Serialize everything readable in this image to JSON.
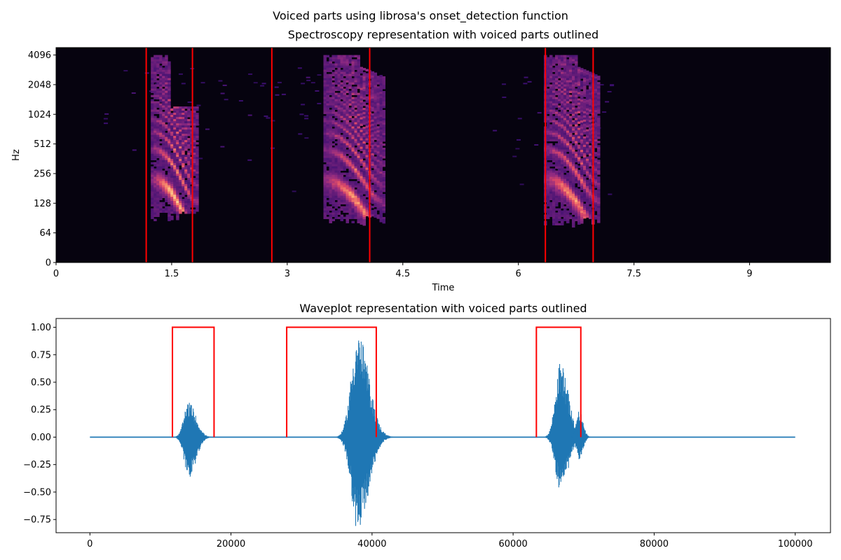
{
  "figure": {
    "suptitle": "Voiced parts using librosa's onset_detection function"
  },
  "chart_data": [
    {
      "type": "heatmap",
      "title": "Spectroscopy representation with voiced parts outlined",
      "xlabel": "Time",
      "ylabel": "Hz",
      "xlim": [
        0,
        10.05
      ],
      "yscale": "symlog",
      "x_ticks": [
        0,
        1.5,
        3,
        4.5,
        6,
        7.5,
        9
      ],
      "x_tick_labels": [
        "0",
        "1.5",
        "3",
        "4.5",
        "6",
        "7.5",
        "9"
      ],
      "y_ticks": [
        0,
        64,
        128,
        256,
        512,
        1024,
        2048,
        4096
      ],
      "y_tick_labels": [
        "0",
        "64",
        "128",
        "256",
        "512",
        "1024",
        "2048",
        "4096"
      ],
      "onset_lines_time": [
        1.17,
        1.77,
        2.8,
        4.07,
        6.35,
        6.97
      ],
      "onset_line_color": "#ff0000",
      "colormap": "magma",
      "background_color": "#06030f",
      "voiced_regions": [
        {
          "start": 1.23,
          "end": 1.82,
          "fmin": 90,
          "fmax": 4096,
          "f0": 150,
          "peak": 1.0
        },
        {
          "start": 3.47,
          "end": 4.25,
          "fmin": 80,
          "fmax": 4096,
          "f0": 145,
          "peak": 0.9
        },
        {
          "start": 6.33,
          "end": 7.05,
          "fmin": 80,
          "fmax": 4096,
          "f0": 150,
          "peak": 0.9
        }
      ]
    },
    {
      "type": "line",
      "title": "Waveplot representation with voiced parts outlined",
      "xlabel": "",
      "ylabel": "",
      "xlim": [
        -4800,
        105000
      ],
      "ylim": [
        -0.87,
        1.08
      ],
      "x_ticks": [
        0,
        20000,
        40000,
        60000,
        80000,
        100000
      ],
      "x_tick_labels": [
        "0",
        "20000",
        "40000",
        "60000",
        "80000",
        "100000"
      ],
      "y_ticks": [
        -0.75,
        -0.5,
        -0.25,
        0.0,
        0.25,
        0.5,
        0.75,
        1.0
      ],
      "y_tick_labels": [
        "−0.75",
        "−0.50",
        "−0.25",
        "0.00",
        "0.25",
        "0.50",
        "0.75",
        "1.00"
      ],
      "series": [
        {
          "color": "#1f77b4",
          "x_range": [
            0,
            100000
          ],
          "bursts": [
            {
              "center": 14000,
              "width": 2600,
              "pos": 0.32,
              "neg": -0.37
            },
            {
              "center": 38000,
              "width": 3800,
              "pos": 0.95,
              "neg": -0.86
            },
            {
              "center": 66700,
              "width": 2800,
              "pos": 0.68,
              "neg": -0.49
            },
            {
              "center": 69300,
              "width": 1400,
              "pos": 0.26,
              "neg": -0.22
            }
          ]
        }
      ],
      "onset_boxes": [
        {
          "start": 11700,
          "end": 17600,
          "height": 1.0
        },
        {
          "start": 27900,
          "end": 40600,
          "height": 1.0
        },
        {
          "start": 63300,
          "end": 69600,
          "height": 1.0
        }
      ],
      "onset_box_color": "#ff0000"
    }
  ]
}
